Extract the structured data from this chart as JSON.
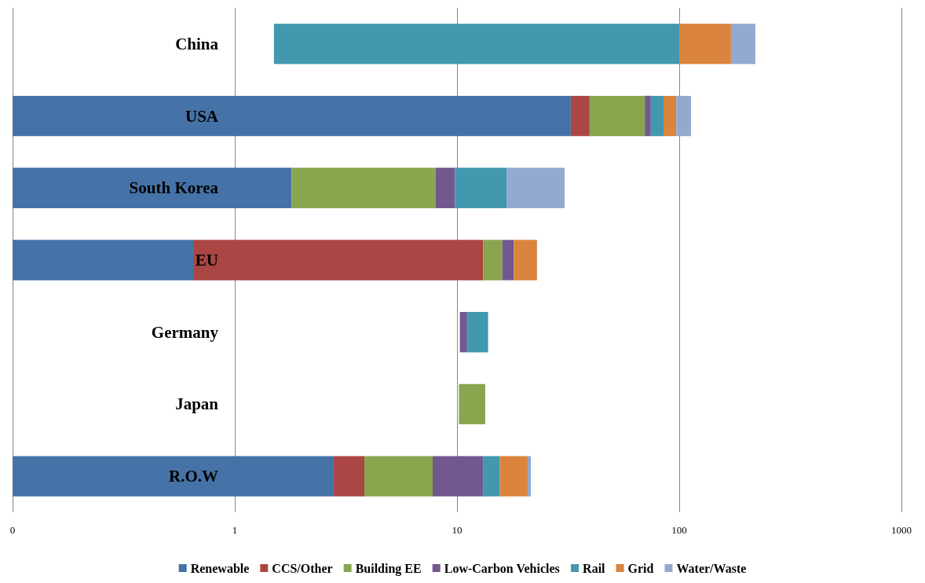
{
  "chart_data": {
    "type": "bar",
    "orientation": "horizontal",
    "stacked": true,
    "log": "x",
    "grid": "x",
    "legend": "bottom",
    "categories": [
      "China",
      "USA",
      "South Korea",
      "EU",
      "Germany",
      "Japan",
      "R.O.W"
    ],
    "xlim": [
      0.1,
      1000
    ],
    "xticks": [
      {
        "value": 0.1,
        "label": "0"
      },
      1,
      10,
      100,
      1000
    ],
    "series": [
      {
        "name": "Renewable",
        "color": "#4572a7",
        "values": [
          null,
          32.5,
          1.8,
          0.65,
          null,
          null,
          2.79
        ]
      },
      {
        "name": "CCS/Other",
        "color": "#aa4643",
        "values": [
          null,
          7,
          null,
          12.45,
          null,
          null,
          1.04
        ]
      },
      {
        "name": "Building EE",
        "color": "#89a54e",
        "values": [
          null,
          30.5,
          6.2,
          2.9,
          null,
          3.2,
          3.94
        ],
        "base": [
          null,
          null,
          null,
          null,
          null,
          10.2,
          null
        ]
      },
      {
        "name": "Low-Carbon Vehicles",
        "color": "#71588f",
        "values": [
          null,
          4.5,
          1.8,
          2.0,
          0.8,
          null,
          5.33
        ],
        "base": [
          null,
          null,
          null,
          null,
          10.3,
          null,
          null
        ]
      },
      {
        "name": "Rail",
        "color": "#4198af",
        "values": [
          98.5,
          10.5,
          6.9,
          null,
          2.7,
          null,
          2.5
        ],
        "base": [
          1.5,
          null,
          null,
          null,
          null,
          null,
          null
        ]
      },
      {
        "name": "Grid",
        "color": "#db843d",
        "values": [
          71,
          12,
          null,
          4.9,
          null,
          null,
          5.2
        ]
      },
      {
        "name": "Water/Waste",
        "color": "#93a9cf",
        "values": [
          49,
          16,
          13.8,
          null,
          null,
          null,
          0.7
        ]
      }
    ]
  }
}
